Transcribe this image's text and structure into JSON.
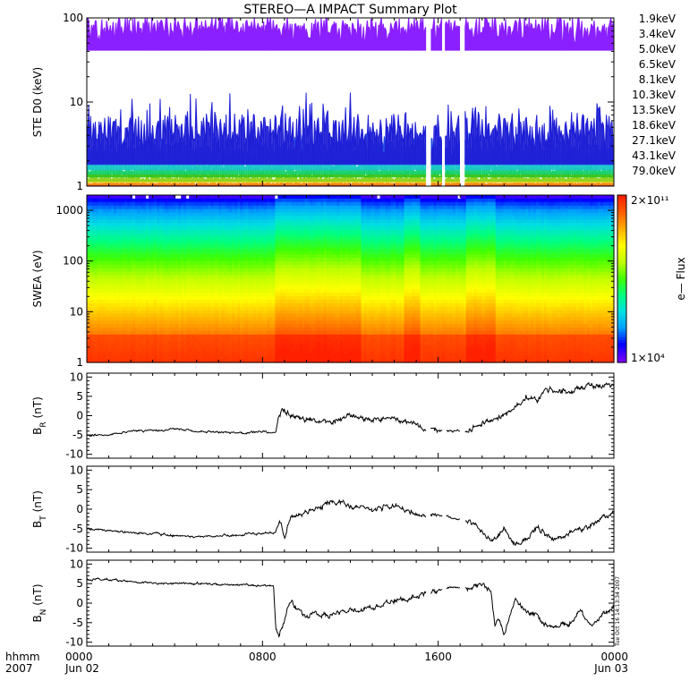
{
  "chart_data": {
    "title": "STEREO—A IMPACT Summary Plot",
    "time_axis": {
      "row_label_top": "hhmm",
      "row_label_bottom": "2007",
      "ticks": [
        {
          "hour": 0,
          "label": "0000",
          "date": "Jun 02"
        },
        {
          "hour": 8,
          "label": "0800",
          "date": ""
        },
        {
          "hour": 16,
          "label": "1600",
          "date": ""
        },
        {
          "hour": 24,
          "label": "0000",
          "date": "Jun 03"
        }
      ],
      "range_hours": [
        0,
        24
      ]
    },
    "panels": [
      {
        "id": "ste",
        "type": "line",
        "ylabel": "STE D0 (keV)",
        "yscale": "log",
        "ylim": [
          1,
          100
        ],
        "yticks": [
          {
            "value": 1,
            "label": "1"
          },
          {
            "value": 10,
            "label": "10"
          },
          {
            "value": 100,
            "label": "100"
          }
        ],
        "data_gaps_hours": [
          [
            15.45,
            15.65
          ],
          [
            16.2,
            16.3
          ],
          [
            17.0,
            17.2
          ]
        ],
        "legend_placement": "right",
        "series": [
          {
            "name": "1.9keV",
            "color": "#8a1fff",
            "level": 75,
            "spread": 0.12
          },
          {
            "name": "3.4keV",
            "color": "#1f1fd6",
            "level": 4.5,
            "spread": 0.18
          },
          {
            "name": "5.0keV",
            "color": "#1e4fe0",
            "level": 3.0,
            "spread": 0.1
          },
          {
            "name": "6.5keV",
            "color": "#1e8fe0",
            "level": 2.4,
            "spread": 0.06
          },
          {
            "name": "8.1keV",
            "color": "#18c8c8",
            "level": 1.9,
            "spread": 0.04
          },
          {
            "name": "10.3keV",
            "color": "#17d070",
            "level": 1.6,
            "spread": 0.03
          },
          {
            "name": "13.5keV",
            "color": "#33c41a",
            "level": 1.4,
            "spread": 0.02
          },
          {
            "name": "18.6keV",
            "color": "#8fd11a",
            "level": 1.25,
            "spread": 0.02
          },
          {
            "name": "27.1keV",
            "color": "#e8d01a",
            "level": 1.15,
            "spread": 0.01
          },
          {
            "name": "43.1keV",
            "color": "#f08a14",
            "level": 1.08,
            "spread": 0.01
          },
          {
            "name": "79.0keV",
            "color": "#e33c14",
            "level": 1.03,
            "spread": 0.005
          }
        ]
      },
      {
        "id": "swea",
        "type": "heatmap",
        "ylabel": "SWEA (eV)",
        "yscale": "log",
        "ylim": [
          1,
          2000
        ],
        "yticks": [
          {
            "value": 1,
            "label": "1"
          },
          {
            "value": 10,
            "label": "10"
          },
          {
            "value": 100,
            "label": "100"
          },
          {
            "value": 1000,
            "label": "1000"
          }
        ],
        "colorbar": {
          "label": "e— Flux",
          "max_label": "2×10¹¹",
          "min_label": "1×10⁴",
          "range": [
            10000,
            200000000000
          ],
          "colors": [
            "#7a00ff",
            "#0000ff",
            "#00a0ff",
            "#00e0e0",
            "#00ff80",
            "#40ff00",
            "#c0ff00",
            "#ffff00",
            "#ffb000",
            "#ff6000",
            "#ff2000"
          ]
        },
        "enhanced_intervals_hours": [
          [
            8.6,
            12.5
          ],
          [
            14.5,
            15.2
          ],
          [
            17.3,
            18.6
          ]
        ]
      },
      {
        "id": "br",
        "type": "line",
        "ylabel": "B",
        "ylabel_sub": "R",
        "ylabel_unit": " (nT)",
        "ylim": [
          -11,
          11
        ],
        "yticks": [
          {
            "value": 10,
            "label": "10"
          },
          {
            "value": 5,
            "label": "5"
          },
          {
            "value": 0,
            "label": "0"
          },
          {
            "value": -5,
            "label": "-5"
          },
          {
            "value": -10,
            "label": "-10"
          }
        ],
        "color": "#000000",
        "data_gaps_hours": [
          [
            15.45,
            15.65
          ],
          [
            16.2,
            16.35
          ],
          [
            17.0,
            17.2
          ]
        ],
        "keypoints": [
          [
            0,
            -5
          ],
          [
            1,
            -5
          ],
          [
            2,
            -4
          ],
          [
            3,
            -3.8
          ],
          [
            4,
            -3.5
          ],
          [
            5,
            -4
          ],
          [
            6,
            -4.3
          ],
          [
            7,
            -4.5
          ],
          [
            8,
            -4.2
          ],
          [
            8.6,
            -4.6
          ],
          [
            8.75,
            0
          ],
          [
            8.9,
            2
          ],
          [
            9.2,
            0
          ],
          [
            10,
            -1
          ],
          [
            11,
            -2
          ],
          [
            12,
            0
          ],
          [
            13,
            -1
          ],
          [
            14,
            -1
          ],
          [
            15,
            -2
          ],
          [
            15.4,
            -3.3
          ],
          [
            16,
            -3.8
          ],
          [
            16.5,
            -4
          ],
          [
            17.5,
            -4
          ],
          [
            18,
            -2
          ],
          [
            19,
            0
          ],
          [
            19.5,
            2
          ],
          [
            20,
            5
          ],
          [
            20.5,
            4
          ],
          [
            21,
            7
          ],
          [
            22,
            6
          ],
          [
            22.5,
            7.5
          ],
          [
            23,
            7.8
          ],
          [
            24,
            8
          ]
        ]
      },
      {
        "id": "bt",
        "type": "line",
        "ylabel": "B",
        "ylabel_sub": "T",
        "ylabel_unit": " (nT)",
        "ylim": [
          -11,
          11
        ],
        "yticks": [
          {
            "value": 10,
            "label": "10"
          },
          {
            "value": 5,
            "label": "5"
          },
          {
            "value": 0,
            "label": "0"
          },
          {
            "value": -5,
            "label": "-5"
          },
          {
            "value": -10,
            "label": "-10"
          }
        ],
        "color": "#000000",
        "data_gaps_hours": [
          [
            15.45,
            15.65
          ],
          [
            16.2,
            16.35
          ],
          [
            17.0,
            17.2
          ]
        ],
        "keypoints": [
          [
            0,
            -5
          ],
          [
            1,
            -5.5
          ],
          [
            2,
            -6
          ],
          [
            3,
            -6.3
          ],
          [
            4,
            -6.8
          ],
          [
            5,
            -7
          ],
          [
            6,
            -6.8
          ],
          [
            7,
            -6.5
          ],
          [
            8,
            -6.2
          ],
          [
            8.6,
            -6
          ],
          [
            8.8,
            -3
          ],
          [
            9,
            -7
          ],
          [
            9.3,
            -2
          ],
          [
            10,
            -1
          ],
          [
            11,
            2
          ],
          [
            12,
            1
          ],
          [
            13,
            0
          ],
          [
            14,
            1
          ],
          [
            14.5,
            0
          ],
          [
            15,
            -1
          ],
          [
            15.4,
            -2
          ],
          [
            16,
            -1.5
          ],
          [
            16.5,
            -2
          ],
          [
            17.5,
            -3
          ],
          [
            18,
            -6
          ],
          [
            18.5,
            -8
          ],
          [
            19,
            -5
          ],
          [
            19.5,
            -9
          ],
          [
            20,
            -8
          ],
          [
            20.5,
            -5
          ],
          [
            21,
            -7
          ],
          [
            21.5,
            -8
          ],
          [
            22,
            -6
          ],
          [
            23,
            -4
          ],
          [
            23.5,
            -2
          ],
          [
            24,
            -1
          ]
        ]
      },
      {
        "id": "bn",
        "type": "line",
        "ylabel": "B",
        "ylabel_sub": "N",
        "ylabel_unit": " (nT)",
        "ylim": [
          -11,
          11
        ],
        "yticks": [
          {
            "value": 10,
            "label": "10"
          },
          {
            "value": 5,
            "label": "5"
          },
          {
            "value": 0,
            "label": "0"
          },
          {
            "value": -5,
            "label": "-5"
          },
          {
            "value": -10,
            "label": "-10"
          }
        ],
        "color": "#000000",
        "data_gaps_hours": [
          [
            15.45,
            15.65
          ],
          [
            16.2,
            16.35
          ],
          [
            17.0,
            17.2
          ]
        ],
        "keypoints": [
          [
            0,
            6
          ],
          [
            1,
            6
          ],
          [
            2,
            5.5
          ],
          [
            3,
            5.2
          ],
          [
            4,
            5
          ],
          [
            5,
            5
          ],
          [
            6,
            4.8
          ],
          [
            7,
            4.6
          ],
          [
            8,
            4.5
          ],
          [
            8.5,
            4.5
          ],
          [
            8.6,
            -6
          ],
          [
            8.75,
            -8.5
          ],
          [
            9,
            -4
          ],
          [
            9.3,
            1
          ],
          [
            9.6,
            -2
          ],
          [
            10,
            -3
          ],
          [
            11,
            -3
          ],
          [
            12,
            -2
          ],
          [
            13,
            -1
          ],
          [
            14,
            0.5
          ],
          [
            15,
            1.5
          ],
          [
            15.4,
            2.5
          ],
          [
            16,
            3.5
          ],
          [
            16.5,
            4
          ],
          [
            17.2,
            4
          ],
          [
            17.5,
            4
          ],
          [
            18,
            5
          ],
          [
            18.4,
            3
          ],
          [
            18.6,
            -6
          ],
          [
            18.8,
            -4
          ],
          [
            19,
            -8
          ],
          [
            19.5,
            1
          ],
          [
            20,
            -2
          ],
          [
            20.5,
            -3
          ],
          [
            21,
            -6
          ],
          [
            22,
            -5
          ],
          [
            22.5,
            -2
          ],
          [
            23,
            -6
          ],
          [
            23.5,
            -3
          ],
          [
            24,
            -1
          ]
        ]
      }
    ]
  },
  "stamps": {
    "bottom_right": "Tue Oct 16 14:13:34 2007"
  }
}
